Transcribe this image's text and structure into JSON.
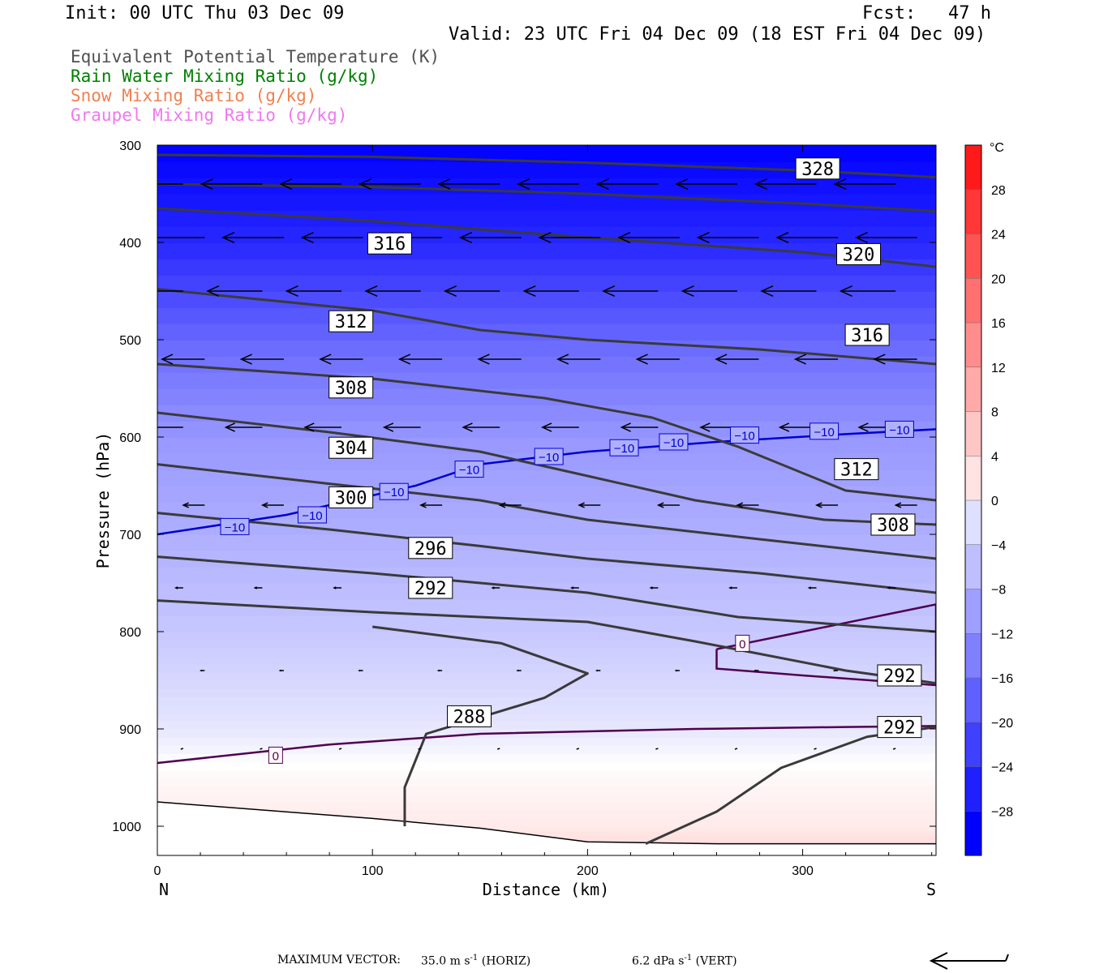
{
  "header": {
    "init": "Init: 00 UTC Thu 03 Dec 09",
    "fcst": "Fcst:   47 h",
    "valid": "Valid: 23 UTC Fri 04 Dec 09 (18 EST Fri 04 Dec 09)"
  },
  "legend": [
    {
      "label": "Equivalent Potential Temperature (K)",
      "color": "#505050"
    },
    {
      "label": "Rain Water Mixing Ratio (g/kg)",
      "color": "#008000"
    },
    {
      "label": "Snow Mixing Ratio (g/kg)",
      "color": "#f08050"
    },
    {
      "label": "Graupel Mixing Ratio (g/kg)",
      "color": "#f078f0"
    }
  ],
  "footer": {
    "max_vector_label": "MAXIMUM VECTOR:",
    "horiz_value": "35.0 m s",
    "horiz_exp": "-1",
    "horiz_tag": "(HORIZ)",
    "vert_value": "6.2 dPa s",
    "vert_exp": "-1",
    "vert_tag": "(VERT)"
  },
  "chart_data": {
    "type": "cross-section",
    "xlabel": "Distance (km)",
    "ylabel": "Pressure (hPa)",
    "xlim": [
      0,
      362
    ],
    "ylim": [
      1030,
      300
    ],
    "x_ticks": [
      0,
      100,
      200,
      300
    ],
    "y_ticks": [
      300,
      400,
      500,
      600,
      700,
      800,
      900,
      1000
    ],
    "x_end_labels": {
      "left": "N",
      "right": "S"
    },
    "colorbar": {
      "unit": "°C",
      "ticks": [
        28,
        24,
        20,
        16,
        12,
        8,
        4,
        0,
        -4,
        -8,
        -12,
        -16,
        -20,
        -24,
        -28
      ],
      "range": [
        -32,
        32
      ],
      "warm_color": "#ff1a1a",
      "cold_color": "#0000ff"
    },
    "theta_e_contours": [
      {
        "value": 328,
        "points": [
          [
            0,
            310
          ],
          [
            100,
            312
          ],
          [
            200,
            318
          ],
          [
            300,
            326
          ],
          [
            362,
            333
          ]
        ],
        "labels": [
          [
            307,
            324
          ]
        ]
      },
      {
        "value": 324,
        "points": [
          [
            0,
            340
          ],
          [
            100,
            343
          ],
          [
            200,
            350
          ],
          [
            300,
            360
          ],
          [
            362,
            368
          ]
        ],
        "labels": []
      },
      {
        "value": 320,
        "points": [
          [
            0,
            365
          ],
          [
            100,
            378
          ],
          [
            200,
            395
          ],
          [
            300,
            410
          ],
          [
            362,
            425
          ]
        ],
        "labels": [
          [
            326,
            412
          ]
        ]
      },
      {
        "value": 316,
        "points": [
          [
            0,
            448
          ],
          [
            100,
            470
          ],
          [
            150,
            490
          ],
          [
            200,
            500
          ],
          [
            280,
            510
          ],
          [
            362,
            525
          ]
        ],
        "labels": [
          [
            108,
            401
          ],
          [
            330,
            495
          ]
        ]
      },
      {
        "value": 312,
        "points": [
          [
            0,
            525
          ],
          [
            100,
            540
          ],
          [
            180,
            560
          ],
          [
            230,
            580
          ],
          [
            270,
            610
          ],
          [
            320,
            655
          ],
          [
            362,
            665
          ]
        ],
        "labels": [
          [
            90,
            481
          ],
          [
            325,
            633
          ]
        ]
      },
      {
        "value": 308,
        "points": [
          [
            0,
            575
          ],
          [
            80,
            595
          ],
          [
            150,
            615
          ],
          [
            200,
            640
          ],
          [
            250,
            665
          ],
          [
            310,
            685
          ],
          [
            362,
            690
          ]
        ],
        "labels": [
          [
            90,
            549
          ],
          [
            342,
            690
          ]
        ]
      },
      {
        "value": 304,
        "points": [
          [
            0,
            628
          ],
          [
            80,
            648
          ],
          [
            150,
            665
          ],
          [
            200,
            685
          ],
          [
            280,
            705
          ],
          [
            362,
            725
          ]
        ],
        "labels": [
          [
            90,
            611
          ]
        ]
      },
      {
        "value": 300,
        "points": [
          [
            0,
            678
          ],
          [
            80,
            695
          ],
          [
            150,
            712
          ],
          [
            200,
            725
          ],
          [
            280,
            740
          ],
          [
            362,
            760
          ]
        ],
        "labels": [
          [
            90,
            662
          ]
        ]
      },
      {
        "value": 296,
        "points": [
          [
            0,
            723
          ],
          [
            100,
            740
          ],
          [
            200,
            760
          ],
          [
            270,
            785
          ],
          [
            362,
            800
          ]
        ],
        "labels": [
          [
            127,
            714
          ]
        ]
      },
      {
        "value": 292,
        "points": [
          [
            0,
            768
          ],
          [
            100,
            780
          ],
          [
            200,
            790
          ],
          [
            250,
            810
          ],
          [
            320,
            840
          ],
          [
            362,
            853
          ]
        ],
        "labels": [
          [
            127,
            755
          ],
          [
            345,
            845
          ]
        ]
      },
      {
        "value": 292,
        "points": [
          [
            362,
            898
          ],
          [
            330,
            908
          ],
          [
            290,
            940
          ],
          [
            260,
            985
          ],
          [
            227,
            1018
          ]
        ],
        "labels": [
          [
            345,
            898
          ]
        ]
      },
      {
        "value": 288,
        "points": [
          [
            100,
            795
          ],
          [
            160,
            812
          ],
          [
            200,
            843
          ],
          [
            180,
            868
          ],
          [
            125,
            905
          ],
          [
            115,
            960
          ],
          [
            115,
            1000
          ]
        ],
        "labels": [
          [
            145,
            887
          ]
        ]
      }
    ],
    "temperature_isotherms": [
      {
        "value": -10,
        "color": "#0000d0",
        "points": [
          [
            0,
            700
          ],
          [
            60,
            680
          ],
          [
            120,
            650
          ],
          [
            150,
            628
          ],
          [
            200,
            615
          ],
          [
            260,
            605
          ],
          [
            320,
            597
          ],
          [
            362,
            592
          ]
        ],
        "labels": [
          [
            36,
            692
          ],
          [
            72,
            680
          ],
          [
            110,
            656
          ],
          [
            145,
            633
          ],
          [
            182,
            620
          ],
          [
            217,
            611
          ],
          [
            240,
            605
          ],
          [
            273,
            598
          ],
          [
            310,
            594
          ],
          [
            345,
            592
          ]
        ]
      },
      {
        "value": 0,
        "color": "#500050",
        "points": [
          [
            0,
            935
          ],
          [
            80,
            916
          ],
          [
            150,
            905
          ],
          [
            250,
            900
          ],
          [
            320,
            898
          ],
          [
            362,
            897
          ]
        ],
        "labels": [
          [
            55,
            927
          ]
        ]
      },
      {
        "value": 0,
        "color": "#500050",
        "points": [
          [
            260,
            818
          ],
          [
            300,
            800
          ],
          [
            362,
            772
          ],
          [
            362,
            855
          ],
          [
            300,
            845
          ],
          [
            260,
            838
          ],
          [
            260,
            818
          ]
        ],
        "labels": [
          [
            272,
            812
          ]
        ]
      }
    ],
    "temperature_field": [
      {
        "p": 1030,
        "t": 6
      },
      {
        "p": 1000,
        "t": 3
      },
      {
        "p": 950,
        "t": 1
      },
      {
        "p": 900,
        "t": -3
      },
      {
        "p": 850,
        "t": -5
      },
      {
        "p": 800,
        "t": -7
      },
      {
        "p": 700,
        "t": -10
      },
      {
        "p": 600,
        "t": -13
      },
      {
        "p": 500,
        "t": -19
      },
      {
        "p": 400,
        "t": -27
      },
      {
        "p": 300,
        "t": -32
      }
    ],
    "wind_levels": [
      {
        "p": 340,
        "u": -1.0
      },
      {
        "p": 395,
        "u": -1.0
      },
      {
        "p": 450,
        "u": -0.9
      },
      {
        "p": 520,
        "u": -0.7
      },
      {
        "p": 590,
        "u": -0.6
      },
      {
        "p": 670,
        "u": -0.35
      },
      {
        "p": 755,
        "u": -0.12
      },
      {
        "p": 840,
        "u": -0.06
      },
      {
        "p": 920,
        "u": -0.02
      }
    ]
  }
}
